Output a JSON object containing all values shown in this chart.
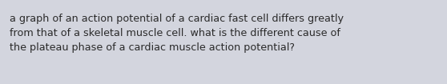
{
  "text": "a graph of an action potential of a cardiac fast cell differs greatly\nfrom that of a skeletal muscle cell. what is the different cause of\nthe plateau phase of a cardiac muscle action potential?",
  "background_color": "#d3d5de",
  "text_color": "#2a2a2a",
  "font_size": 9.2,
  "font_family": "DejaVu Sans",
  "fig_width": 5.58,
  "fig_height": 1.05,
  "dpi": 100
}
